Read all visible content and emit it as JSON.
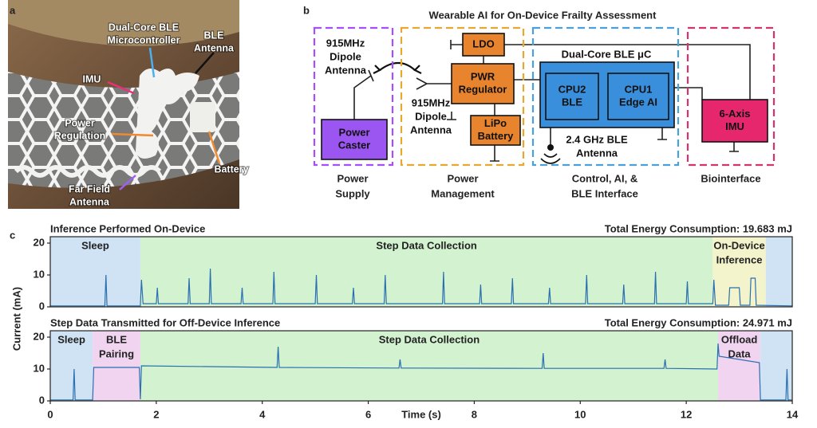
{
  "panel_labels": [
    "a",
    "b",
    "c"
  ],
  "photo": {
    "labels": [
      [
        "Dual-Core BLE",
        "Microcontroller"
      ],
      [
        "BLE",
        "Antenna"
      ],
      [
        "IMU"
      ],
      [
        "Power",
        "Regulation"
      ],
      [
        "Battery"
      ],
      [
        "Far Field",
        "Antenna"
      ]
    ]
  },
  "diagram": {
    "title": "Wearable AI for On-Device Frailty Assessment",
    "groups": [
      {
        "label": [
          "Power",
          "Supply"
        ],
        "color": "#a64dff"
      },
      {
        "label": [
          "Power",
          "Management"
        ],
        "color": "#e8a830"
      },
      {
        "label": [
          "Control, AI, &",
          "BLE Interface"
        ],
        "color": "#4aa0dc"
      },
      {
        "label": [
          "Biointerface"
        ],
        "color": "#d6336c"
      }
    ],
    "blocks": [
      {
        "label": [
          "Power",
          "Caster"
        ],
        "color": "#9b55f0"
      },
      {
        "label": [
          "LDO"
        ],
        "color": "#e8832e"
      },
      {
        "label": [
          "PWR",
          "Regulator"
        ],
        "color": "#e8832e"
      },
      {
        "label": [
          "LiPo",
          "Battery"
        ],
        "color": "#e8832e"
      },
      {
        "label": [
          "CPU2",
          "BLE"
        ],
        "color": "#3a8fdc"
      },
      {
        "label": [
          "CPU1",
          "Edge AI"
        ],
        "color": "#3a8fdc"
      },
      {
        "label": [
          "6-Axis",
          "IMU"
        ],
        "color": "#e6276e"
      }
    ],
    "mcu_label": "Dual-Core BLE μC",
    "antennas": [
      [
        "915MHz",
        "Dipole",
        "Antenna"
      ],
      [
        "915MHz",
        "Dipole",
        "Antenna"
      ],
      [
        "2.4 GHz BLE",
        "Antenna"
      ]
    ]
  },
  "shared_ylabel": "Current (mA)",
  "chart_data": [
    {
      "type": "line",
      "title": "Inference Performed On-Device",
      "annotation": "Total Energy Consumption: 19.683 mJ",
      "xlim": [
        0,
        14
      ],
      "ylim": [
        0,
        22
      ],
      "yticks": [
        0,
        10,
        20
      ],
      "color": "#2a6fb0",
      "regions": [
        {
          "label": [
            "Sleep"
          ],
          "start": 0,
          "end": 1.7,
          "color": "#cfe3f5"
        },
        {
          "label": [
            "Step Data Collection"
          ],
          "start": 1.7,
          "end": 12.5,
          "color": "#d3f2d0"
        },
        {
          "label": [
            "On-Device",
            "Inference"
          ],
          "start": 12.5,
          "end": 13.5,
          "color": "#f3f3cc"
        },
        {
          "start": 13.5,
          "end": 14,
          "color": "#cfe3f5"
        }
      ],
      "x": [
        0,
        1.03,
        1.05,
        1.07,
        1.7,
        1.72,
        1.75,
        2.0,
        2.02,
        2.04,
        2.6,
        2.62,
        2.64,
        3.0,
        3.02,
        3.04,
        3.6,
        3.62,
        3.64,
        4.2,
        4.22,
        4.24,
        5.0,
        5.02,
        5.04,
        5.7,
        5.72,
        5.74,
        6.3,
        6.32,
        6.34,
        7.4,
        7.42,
        7.44,
        8.1,
        8.12,
        8.14,
        8.7,
        8.72,
        8.74,
        9.4,
        9.42,
        9.44,
        10.1,
        10.12,
        10.14,
        10.8,
        10.82,
        10.84,
        11.4,
        11.42,
        11.44,
        12.0,
        12.02,
        12.04,
        12.5,
        12.52,
        12.55,
        12.8,
        12.82,
        13.0,
        13.02,
        13.2,
        13.22,
        13.3,
        13.32,
        14
      ],
      "values": [
        0.3,
        0.3,
        10,
        0.3,
        0.3,
        8.5,
        1,
        1,
        6,
        1,
        1,
        9,
        1,
        1,
        12,
        1,
        1,
        6,
        1,
        1,
        11,
        1,
        1,
        10,
        1,
        1,
        6,
        1,
        1,
        10,
        1,
        1,
        11,
        1,
        1,
        7,
        1,
        1,
        9,
        1,
        1,
        6,
        1,
        1,
        10,
        1,
        1,
        7,
        1,
        1,
        11,
        1,
        1,
        8,
        1,
        1,
        8.5,
        0.5,
        0.5,
        6,
        6,
        0.5,
        0.5,
        9,
        9,
        0.5,
        0.3
      ]
    },
    {
      "type": "line",
      "title": "Step Data Transmitted for Off-Device Inference",
      "annotation": "Total Energy Consumption: 24.971 mJ",
      "xlim": [
        0,
        14
      ],
      "ylim": [
        0,
        22
      ],
      "yticks": [
        0,
        10,
        20
      ],
      "xticks": [
        0,
        2,
        4,
        6,
        8,
        10,
        12,
        14
      ],
      "xlabel": "Time (s)",
      "color": "#2a6fb0",
      "regions": [
        {
          "label": [
            "Sleep"
          ],
          "start": 0,
          "end": 0.8,
          "color": "#cfe3f5"
        },
        {
          "label": [
            "BLE",
            "Pairing"
          ],
          "start": 0.8,
          "end": 1.7,
          "color": "#f0d4f0"
        },
        {
          "label": [
            "Step Data Collection"
          ],
          "start": 1.7,
          "end": 12.6,
          "color": "#d3f2d0"
        },
        {
          "label": [
            "Offload",
            "Data"
          ],
          "start": 12.6,
          "end": 13.4,
          "color": "#f0d4f0"
        },
        {
          "start": 13.4,
          "end": 14,
          "color": "#cfe3f5"
        }
      ],
      "x": [
        0,
        0.43,
        0.45,
        0.47,
        0.8,
        0.82,
        1.68,
        1.7,
        1.72,
        4.28,
        4.3,
        4.32,
        6.58,
        6.6,
        6.62,
        9.28,
        9.3,
        9.32,
        11.58,
        11.6,
        11.62,
        12.58,
        12.6,
        12.62,
        13.38,
        13.4,
        13.88,
        13.9,
        13.92,
        14
      ],
      "values": [
        0.3,
        0.3,
        10,
        0.3,
        0.3,
        10.5,
        10.5,
        0.5,
        11,
        10.5,
        17,
        10.5,
        10.3,
        13,
        10.3,
        10.2,
        15,
        10.2,
        10.2,
        13,
        10.2,
        10,
        18,
        14,
        12,
        0.3,
        0.3,
        10,
        0.3,
        0.3
      ]
    }
  ]
}
